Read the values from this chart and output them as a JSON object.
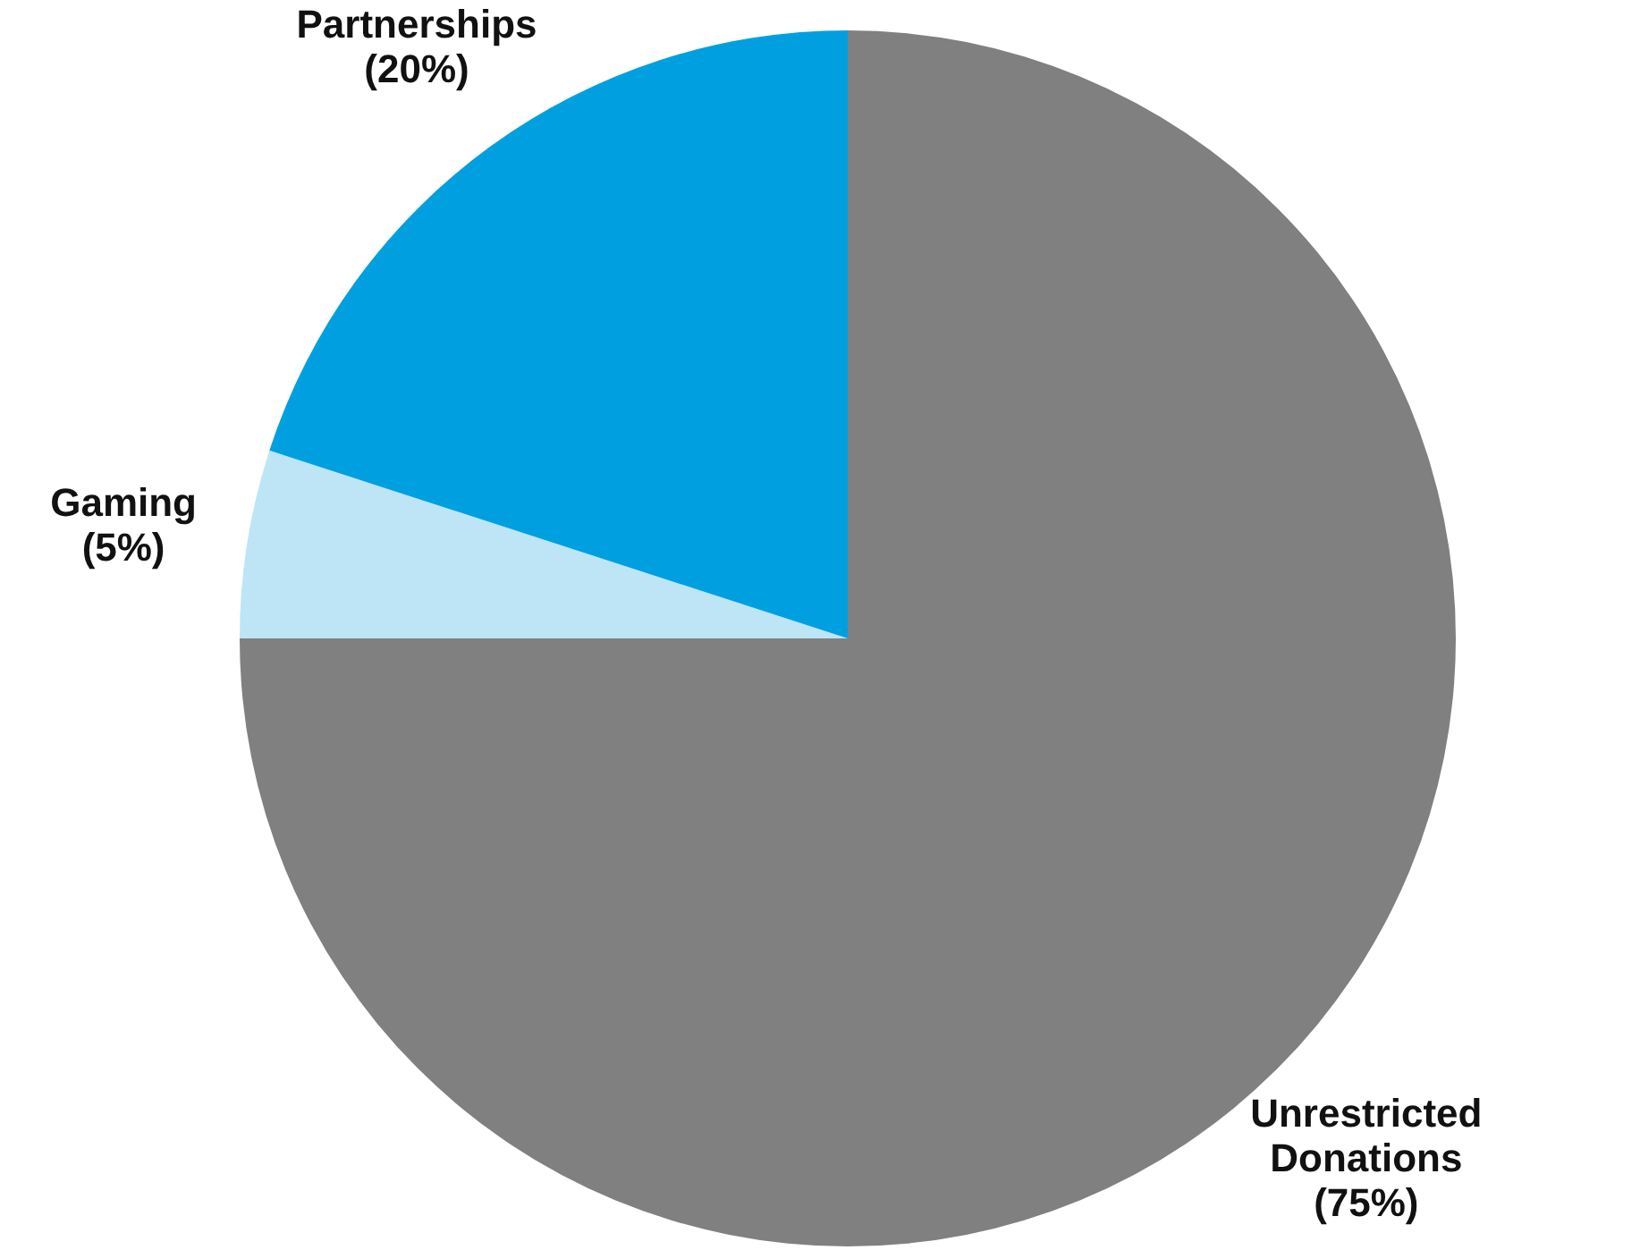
{
  "chart_data": {
    "type": "pie",
    "categories": [
      "Unrestricted Donations",
      "Gaming",
      "Partnerships"
    ],
    "values": [
      75,
      5,
      20
    ],
    "colors": [
      "#808080",
      "#bde5f6",
      "#00a0e0"
    ],
    "value_labels": [
      "(75%)",
      "(5%)",
      "(20%)"
    ],
    "legend": false
  }
}
